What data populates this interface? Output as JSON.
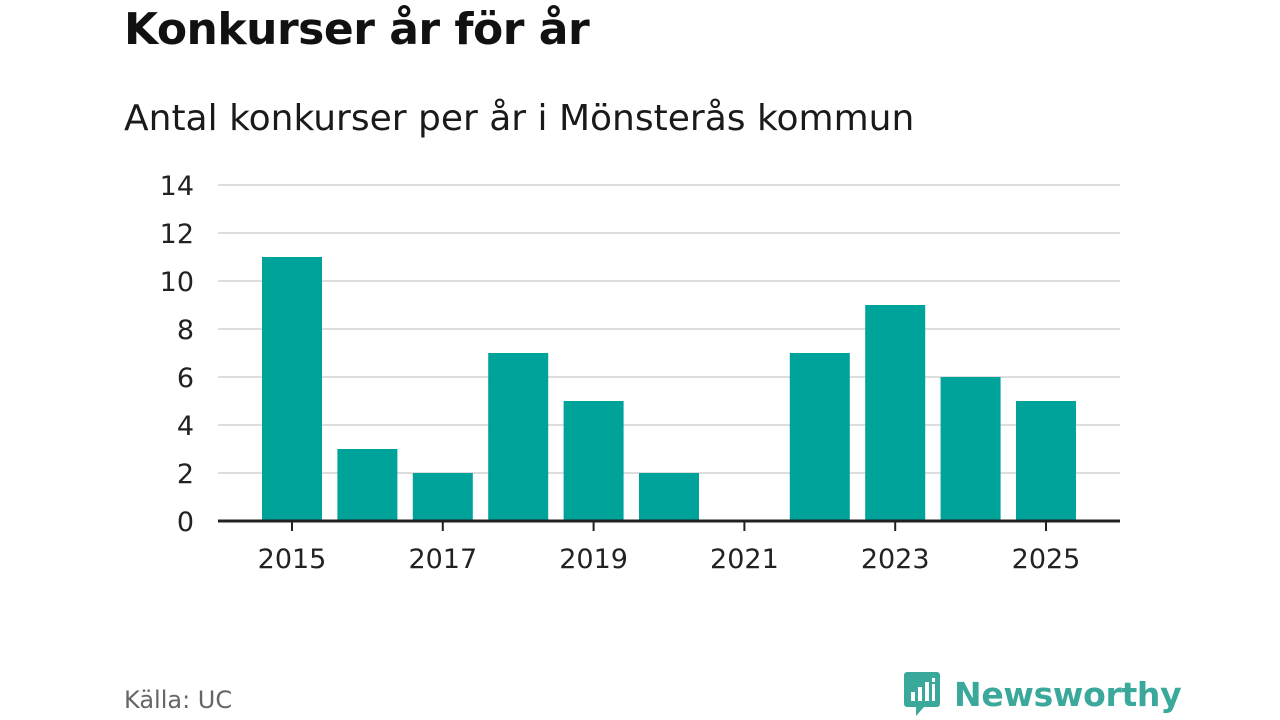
{
  "header": {
    "title": "Konkurser år för år",
    "subtitle": "Antal konkurser per år i Mönsterås kommun"
  },
  "footer": {
    "source": "Källa: UC",
    "brand": "Newsworthy"
  },
  "colors": {
    "bar": "#00a39a",
    "gridline": "#dddddd",
    "axis": "#222222",
    "brand": "#3aa89a"
  },
  "chart_data": {
    "type": "bar",
    "title": "Konkurser år för år",
    "subtitle": "Antal konkurser per år i Mönsterås kommun",
    "xlabel": "",
    "ylabel": "",
    "categories": [
      "2015",
      "2016",
      "2017",
      "2018",
      "2019",
      "2020",
      "2021",
      "2022",
      "2023",
      "2024",
      "2025"
    ],
    "values": [
      11,
      3,
      2,
      7,
      5,
      2,
      0,
      7,
      9,
      6,
      5
    ],
    "x_tick_labels": [
      "2015",
      "2017",
      "2019",
      "2021",
      "2023",
      "2025"
    ],
    "y_ticks": [
      0,
      2,
      4,
      6,
      8,
      10,
      12,
      14
    ],
    "ylim": [
      0,
      14
    ],
    "grid": true,
    "legend": "none"
  }
}
